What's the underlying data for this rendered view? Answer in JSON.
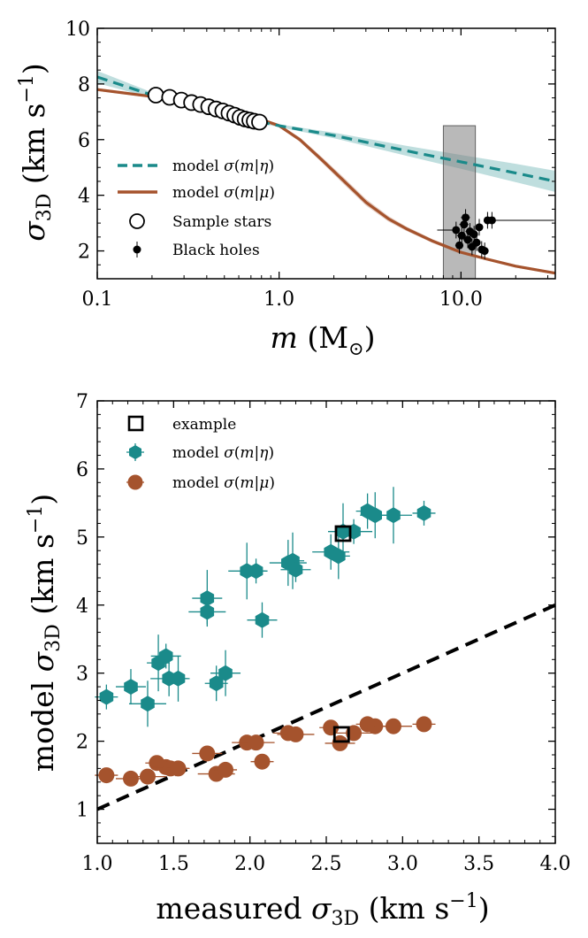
{
  "chart_data": [
    {
      "type": "line",
      "xscale": "log",
      "xlim": [
        0.1,
        33
      ],
      "ylim": [
        1,
        10
      ],
      "xticks": [
        0.1,
        1.0,
        10.0
      ],
      "xtick_labels": [
        "0.1",
        "1.0",
        "10.0"
      ],
      "yticks": [
        2,
        4,
        6,
        8,
        10
      ],
      "ytick_labels": [
        "2",
        "4",
        "6",
        "8",
        "10"
      ],
      "xlabel": {
        "main": "m",
        "paren_open": " (M",
        "paren_close": ")"
      },
      "ylabel": {
        "sym": "σ",
        "sub": "3D",
        "unit": " (km s",
        "sup": "−1",
        "close": ")"
      },
      "series": [
        {
          "name": "model σ(m|η)",
          "legend": {
            "pre": "model ",
            "sym": "σ",
            "open": "(",
            "v1": "m",
            "bar": "|",
            "v2": "η",
            "close": ")"
          },
          "style": "dashed",
          "color": "#1a8a8a",
          "band": true,
          "x": [
            0.1,
            0.2,
            0.5,
            1.0,
            2.0,
            5.0,
            10.0,
            20.0,
            33.0
          ],
          "y": [
            8.25,
            7.6,
            6.9,
            6.5,
            6.15,
            5.6,
            5.2,
            4.8,
            4.5
          ],
          "band_half_width": [
            0.22,
            0.1,
            0.05,
            0.05,
            0.1,
            0.18,
            0.25,
            0.33,
            0.38
          ]
        },
        {
          "name": "model σ(m|μ)",
          "legend": {
            "pre": "model ",
            "sym": "σ",
            "open": "(",
            "v1": "m",
            "bar": "|",
            "v2": "μ",
            "close": ")"
          },
          "style": "solid",
          "color": "#a5532d",
          "band": true,
          "x": [
            0.1,
            0.2,
            0.4,
            0.6,
            0.8,
            1.0,
            1.3,
            1.7,
            2.2,
            3.0,
            4.0,
            5.0,
            7.0,
            10.0,
            14.0,
            20.0,
            33.0
          ],
          "y": [
            7.8,
            7.55,
            7.2,
            6.9,
            6.72,
            6.5,
            6.0,
            5.3,
            4.6,
            3.75,
            3.15,
            2.8,
            2.35,
            1.95,
            1.7,
            1.45,
            1.2
          ],
          "band_half_width": [
            0.05,
            0.05,
            0.05,
            0.05,
            0.05,
            0.06,
            0.08,
            0.1,
            0.12,
            0.12,
            0.1,
            0.08,
            0.07,
            0.06,
            0.05,
            0.05,
            0.05
          ]
        },
        {
          "name": "Sample stars",
          "legend": {
            "text": "Sample stars"
          },
          "style": "open-circle",
          "color": "#000000",
          "x": [
            0.21,
            0.25,
            0.29,
            0.33,
            0.37,
            0.41,
            0.45,
            0.49,
            0.53,
            0.57,
            0.61,
            0.65,
            0.69,
            0.73,
            0.78
          ],
          "y": [
            7.6,
            7.52,
            7.42,
            7.33,
            7.26,
            7.18,
            7.1,
            7.03,
            6.95,
            6.88,
            6.8,
            6.74,
            6.7,
            6.66,
            6.63
          ]
        },
        {
          "name": "Black holes",
          "legend": {
            "text": "Black holes"
          },
          "style": "filled-dot-errorbar",
          "color": "#000000",
          "points": [
            {
              "x": 9.4,
              "y": 2.75,
              "xerr": [
                2.0,
                0.0
              ],
              "yerr": 0.3
            },
            {
              "x": 9.8,
              "y": 2.2,
              "xerr": [
                0.5,
                0.5
              ],
              "yerr": 0.3
            },
            {
              "x": 10.1,
              "y": 2.55,
              "xerr": [
                0.6,
                0.6
              ],
              "yerr": 0.3
            },
            {
              "x": 10.4,
              "y": 2.95,
              "xerr": [
                0.6,
                0.6
              ],
              "yerr": 0.3
            },
            {
              "x": 10.6,
              "y": 3.2,
              "xerr": [
                0.6,
                0.6
              ],
              "yerr": 0.3
            },
            {
              "x": 10.9,
              "y": 2.4,
              "xerr": [
                0.6,
                0.6
              ],
              "yerr": 0.3
            },
            {
              "x": 11.2,
              "y": 2.7,
              "xerr": [
                0.6,
                0.6
              ],
              "yerr": 0.3
            },
            {
              "x": 11.5,
              "y": 2.15,
              "xerr": [
                0.6,
                0.6
              ],
              "yerr": 0.3
            },
            {
              "x": 11.8,
              "y": 2.6,
              "xerr": [
                0.6,
                0.6
              ],
              "yerr": 0.3
            },
            {
              "x": 12.2,
              "y": 2.3,
              "xerr": [
                0.6,
                0.6
              ],
              "yerr": 0.3
            },
            {
              "x": 12.6,
              "y": 2.85,
              "xerr": [
                0.6,
                0.6
              ],
              "yerr": 0.3
            },
            {
              "x": 13.0,
              "y": 2.05,
              "xerr": [
                0.6,
                0.6
              ],
              "yerr": 0.3
            },
            {
              "x": 13.5,
              "y": 2.0,
              "xerr": [
                0.6,
                0.6
              ],
              "yerr": 0.3
            },
            {
              "x": 14.0,
              "y": 3.1,
              "xerr": [
                0.6,
                0.6
              ],
              "yerr": 0.3
            },
            {
              "x": 14.8,
              "y": 3.1,
              "xerr": [
                0.5,
                18.0
              ],
              "yerr": 0.3
            }
          ]
        }
      ],
      "shaded_region": {
        "x": [
          8.0,
          12.0
        ],
        "y": [
          1,
          6.5
        ],
        "color": "#808080"
      },
      "legend_placement": "lower-left"
    },
    {
      "type": "scatter",
      "xlim": [
        1.0,
        4.0
      ],
      "ylim": [
        0.5,
        7
      ],
      "xticks": [
        1.0,
        1.5,
        2.0,
        2.5,
        3.0,
        3.5,
        4.0
      ],
      "xtick_labels": [
        "1.0",
        "1.5",
        "2.0",
        "2.5",
        "3.0",
        "3.5",
        "4.0"
      ],
      "yticks": [
        1,
        2,
        3,
        4,
        5,
        6,
        7
      ],
      "ytick_labels": [
        "1",
        "2",
        "3",
        "4",
        "5",
        "6",
        "7"
      ],
      "xlabel": {
        "pre": "measured ",
        "sym": "σ",
        "sub": "3D",
        "unit": " (km s",
        "sup": "−1",
        "close": ")"
      },
      "ylabel": {
        "pre": "model ",
        "sym": "σ",
        "sub": "3D",
        "unit": " (km s",
        "sup": "−1",
        "close": ")"
      },
      "one_to_one_line": {
        "x": [
          1.0,
          4.0
        ],
        "y": [
          1.0,
          4.0
        ],
        "style": "dashed",
        "color": "#000000"
      },
      "series": [
        {
          "name": "model σ(m|η)",
          "legend": {
            "pre": "model ",
            "sym": "σ",
            "open": "(",
            "v1": "m",
            "bar": "|",
            "v2": "η",
            "close": ")"
          },
          "marker": "hexagon",
          "color": "#1a8a8a",
          "points": [
            {
              "x": 1.06,
              "y": 2.65
            },
            {
              "x": 1.22,
              "y": 2.8
            },
            {
              "x": 1.33,
              "y": 2.55
            },
            {
              "x": 1.4,
              "y": 3.15
            },
            {
              "x": 1.45,
              "y": 3.25
            },
            {
              "x": 1.47,
              "y": 2.92
            },
            {
              "x": 1.53,
              "y": 2.92
            },
            {
              "x": 1.72,
              "y": 4.1
            },
            {
              "x": 1.72,
              "y": 3.9
            },
            {
              "x": 1.78,
              "y": 2.85
            },
            {
              "x": 1.84,
              "y": 3.0
            },
            {
              "x": 1.98,
              "y": 4.5
            },
            {
              "x": 2.04,
              "y": 4.5
            },
            {
              "x": 2.08,
              "y": 3.78
            },
            {
              "x": 2.25,
              "y": 4.62
            },
            {
              "x": 2.28,
              "y": 4.65
            },
            {
              "x": 2.3,
              "y": 4.52
            },
            {
              "x": 2.53,
              "y": 4.78
            },
            {
              "x": 2.58,
              "y": 4.72
            },
            {
              "x": 2.61,
              "y": 5.08
            },
            {
              "x": 2.68,
              "y": 5.08
            },
            {
              "x": 2.77,
              "y": 5.38
            },
            {
              "x": 2.82,
              "y": 5.32
            },
            {
              "x": 2.94,
              "y": 5.32
            },
            {
              "x": 3.14,
              "y": 5.35
            }
          ]
        },
        {
          "name": "model σ(m|μ)",
          "legend": {
            "pre": "model ",
            "sym": "σ",
            "open": "(",
            "v1": "m",
            "bar": "|",
            "v2": "μ",
            "close": ")"
          },
          "marker": "circle",
          "color": "#a5532d",
          "points": [
            {
              "x": 1.06,
              "y": 1.5
            },
            {
              "x": 1.22,
              "y": 1.45
            },
            {
              "x": 1.33,
              "y": 1.48
            },
            {
              "x": 1.39,
              "y": 1.68
            },
            {
              "x": 1.45,
              "y": 1.62
            },
            {
              "x": 1.48,
              "y": 1.6
            },
            {
              "x": 1.53,
              "y": 1.6
            },
            {
              "x": 1.72,
              "y": 1.82
            },
            {
              "x": 1.78,
              "y": 1.52
            },
            {
              "x": 1.84,
              "y": 1.58
            },
            {
              "x": 1.98,
              "y": 1.98
            },
            {
              "x": 2.04,
              "y": 1.98
            },
            {
              "x": 2.08,
              "y": 1.7
            },
            {
              "x": 2.25,
              "y": 2.12
            },
            {
              "x": 2.3,
              "y": 2.1
            },
            {
              "x": 2.53,
              "y": 2.2
            },
            {
              "x": 2.59,
              "y": 1.97
            },
            {
              "x": 2.68,
              "y": 2.12
            },
            {
              "x": 2.77,
              "y": 2.25
            },
            {
              "x": 2.82,
              "y": 2.22
            },
            {
              "x": 2.94,
              "y": 2.22
            },
            {
              "x": 3.14,
              "y": 2.25
            }
          ]
        },
        {
          "name": "example",
          "legend": {
            "text": "example"
          },
          "marker": "open-square",
          "color": "#000000",
          "points": [
            {
              "x": 2.61,
              "y": 5.05
            },
            {
              "x": 2.6,
              "y": 2.1
            }
          ]
        }
      ],
      "legend_placement": "top-left"
    }
  ]
}
